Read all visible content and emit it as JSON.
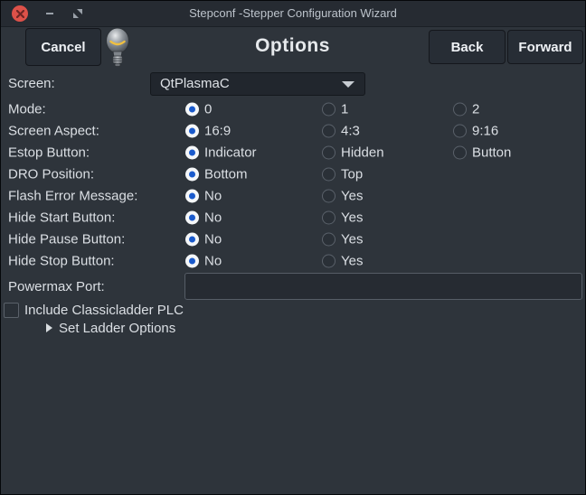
{
  "window": {
    "title": "Stepconf -Stepper Configuration Wizard"
  },
  "header": {
    "cancel_label": "Cancel",
    "title": "Options",
    "back_label": "Back",
    "forward_label": "Forward"
  },
  "form": {
    "screen": {
      "label": "Screen:",
      "value": "QtPlasmaC"
    },
    "radio_rows": [
      {
        "label": "Mode:",
        "options": [
          {
            "label": "0",
            "selected": true
          },
          {
            "label": "1",
            "selected": false
          },
          {
            "label": "2",
            "selected": false
          }
        ]
      },
      {
        "label": "Screen Aspect:",
        "options": [
          {
            "label": "16:9",
            "selected": true
          },
          {
            "label": "4:3",
            "selected": false
          },
          {
            "label": "9:16",
            "selected": false
          }
        ]
      },
      {
        "label": "Estop Button:",
        "options": [
          {
            "label": "Indicator",
            "selected": true
          },
          {
            "label": "Hidden",
            "selected": false
          },
          {
            "label": "Button",
            "selected": false
          }
        ]
      },
      {
        "label": "DRO Position:",
        "options": [
          {
            "label": "Bottom",
            "selected": true
          },
          {
            "label": "Top",
            "selected": false
          }
        ]
      },
      {
        "label": "Flash Error Message:",
        "options": [
          {
            "label": "No",
            "selected": true
          },
          {
            "label": "Yes",
            "selected": false
          }
        ]
      },
      {
        "label": "Hide Start Button:",
        "options": [
          {
            "label": "No",
            "selected": true
          },
          {
            "label": "Yes",
            "selected": false
          }
        ]
      },
      {
        "label": "Hide Pause Button:",
        "options": [
          {
            "label": "No",
            "selected": true
          },
          {
            "label": "Yes",
            "selected": false
          }
        ]
      },
      {
        "label": "Hide Stop Button:",
        "options": [
          {
            "label": "No",
            "selected": true
          },
          {
            "label": "Yes",
            "selected": false
          }
        ]
      }
    ],
    "powermax": {
      "label": "Powermax Port:",
      "value": ""
    },
    "classicladder": {
      "label": "Include Classicladder PLC",
      "checked": false
    },
    "ladder_options": {
      "label": "Set Ladder Options",
      "expanded": false
    }
  },
  "colors": {
    "accent_blue": "#1a5acc",
    "close_red": "#dd5149",
    "bulb_glow": "#f0c040",
    "titlebar_bg": "#262b32",
    "content_bg": "#2e343b"
  }
}
